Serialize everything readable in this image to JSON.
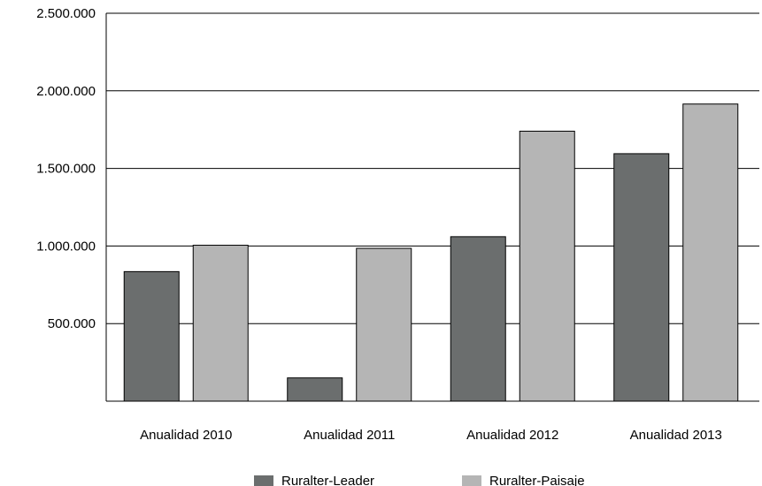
{
  "chart_data": {
    "type": "bar",
    "categories": [
      "Anualidad 2010",
      "Anualidad 2011",
      "Anualidad 2012",
      "Anualidad 2013"
    ],
    "series": [
      {
        "name": "Ruralter-Leader",
        "color": "#6b6e6e",
        "values": [
          835000,
          150000,
          1060000,
          1595000
        ]
      },
      {
        "name": "Ruralter-Paisaje",
        "color": "#b5b5b5",
        "values": [
          1005000,
          985000,
          1740000,
          1915000
        ]
      }
    ],
    "ylim": [
      0,
      2500000
    ],
    "yticks": [
      500000,
      1000000,
      1500000,
      2000000,
      2500000
    ],
    "ytick_labels": [
      "500.000",
      "1.000.000",
      "1.500.000",
      "2.000.000",
      "2.500.000"
    ],
    "grid": true,
    "legend": "bottom",
    "title": "",
    "xlabel": "",
    "ylabel": ""
  }
}
